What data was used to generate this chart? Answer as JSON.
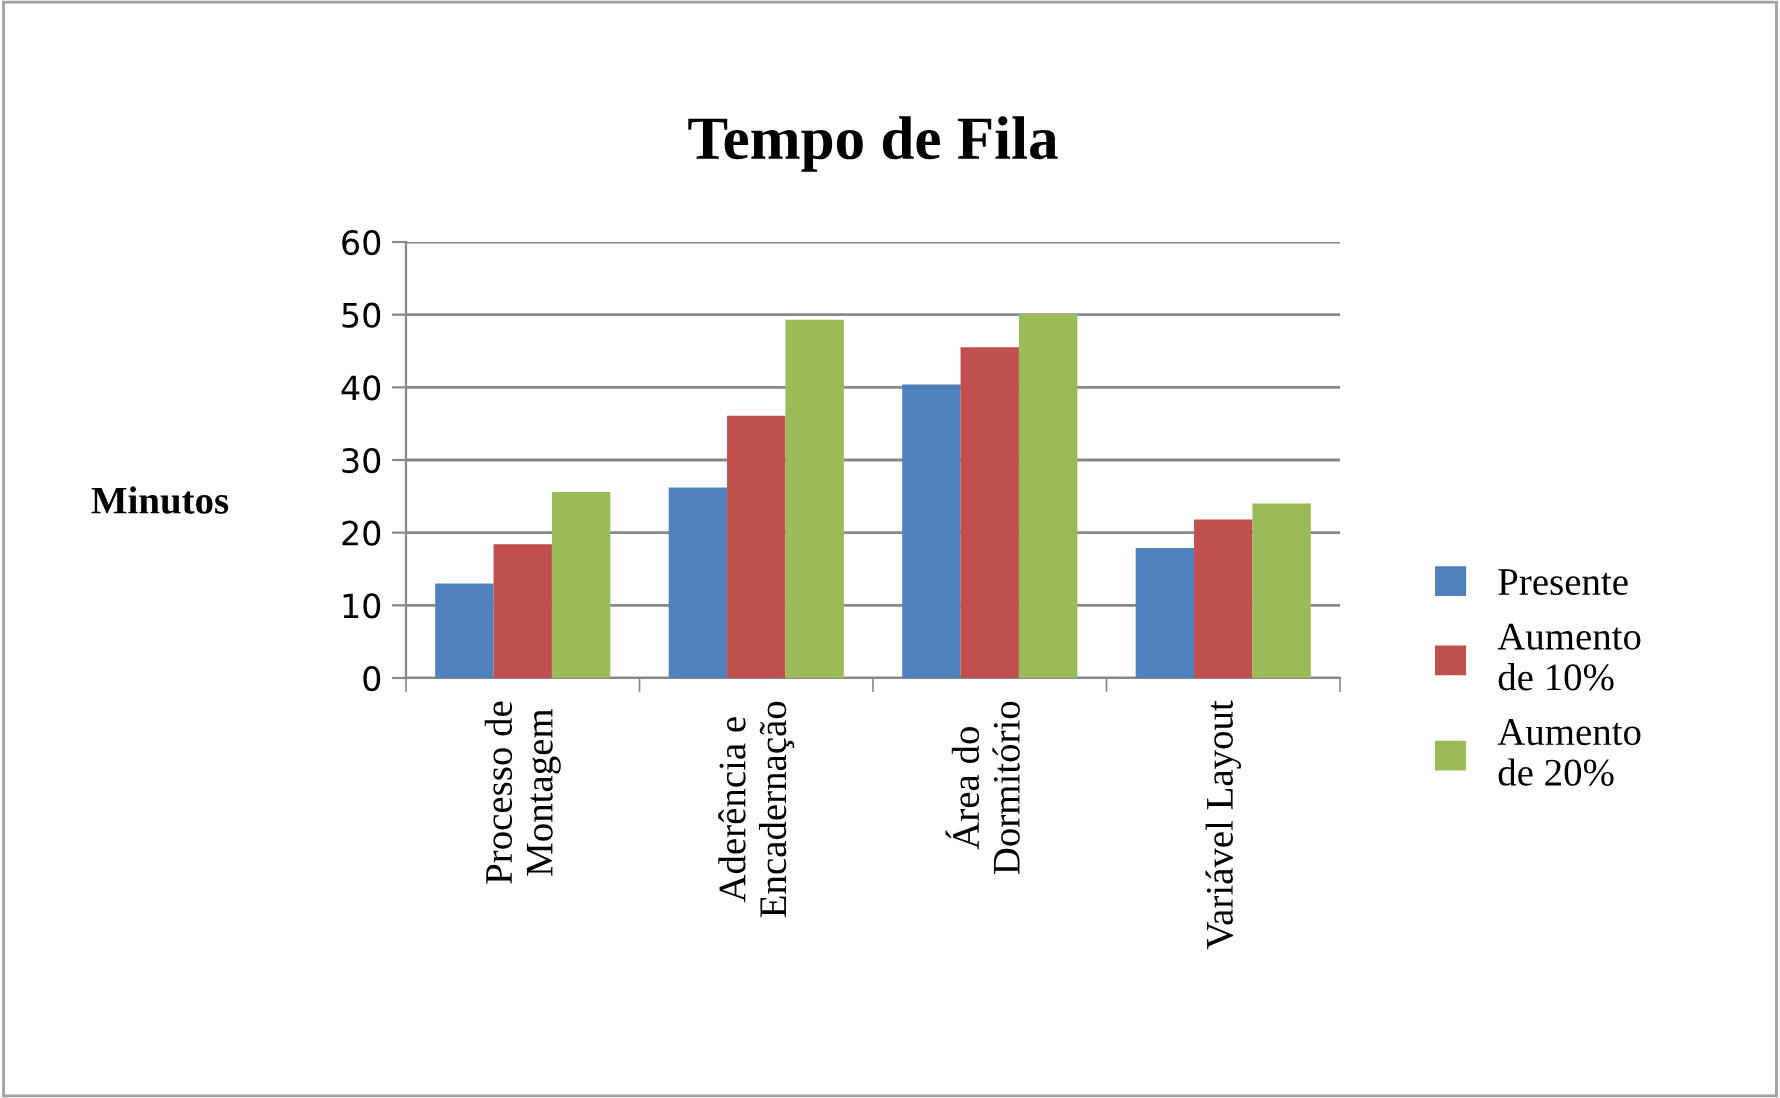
{
  "chart_data": {
    "type": "bar",
    "title": "Tempo de Fila",
    "ylabel": "Minutos",
    "categories": [
      "Processo de\nMontagem",
      "Aderência e\nEncadernação",
      "Área do\nDormitório",
      "Variável Layout"
    ],
    "series": [
      {
        "name": "Presente",
        "color": "#4f81bd",
        "values": [
          13,
          26.2,
          40.4,
          17.9
        ]
      },
      {
        "name": "Aumento\nde 10%",
        "color": "#c0504d",
        "values": [
          18.4,
          36.1,
          45.5,
          21.8
        ]
      },
      {
        "name": "Aumento\nde 20%",
        "color": "#9bbb59",
        "values": [
          25.6,
          49.3,
          50.1,
          24
        ]
      }
    ],
    "ylim": [
      0,
      60
    ],
    "yticks": [
      0,
      10,
      20,
      30,
      40,
      50,
      60
    ],
    "grid": "y",
    "legend": "right"
  }
}
